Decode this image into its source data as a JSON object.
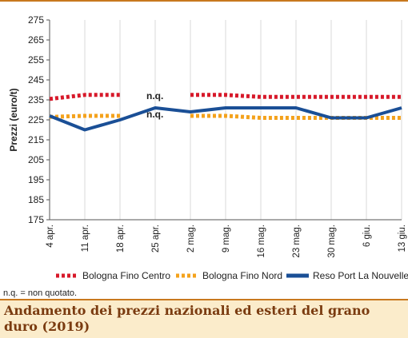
{
  "chart_data": {
    "type": "line",
    "title": "Andamento dei prezzi nazionali ed esteri del grano duro (2019)",
    "ylabel": "Prezzi (euro/t)",
    "xlabel": "",
    "ylim": [
      175,
      275
    ],
    "yticks": [
      175,
      185,
      195,
      205,
      215,
      225,
      235,
      245,
      255,
      265,
      275
    ],
    "categories": [
      "4 apr.",
      "11 apr.",
      "18 apr.",
      "25 apr.",
      "2 mag.",
      "9 mag.",
      "16 mag.",
      "23 mag.",
      "30 mag.",
      "6 giu.",
      "13 giu."
    ],
    "grid": "vertical",
    "legend_position": "bottom",
    "series": [
      {
        "name": "Bologna Fino Centro",
        "color": "#d7192a",
        "style": "dotted",
        "values": [
          235.5,
          237.5,
          237.5,
          null,
          237.5,
          237.5,
          236.5,
          236.5,
          236.5,
          236.5,
          236.5
        ]
      },
      {
        "name": "Bologna Fino Nord",
        "color": "#f4a21c",
        "style": "dotted",
        "values": [
          226.5,
          227,
          227,
          null,
          227,
          227,
          226,
          226,
          226,
          226,
          226
        ]
      },
      {
        "name": "Reso Port La Nouvelle",
        "color": "#1a4f96",
        "style": "solid",
        "values": [
          227,
          220,
          225,
          231,
          229,
          231,
          231,
          231,
          226,
          226,
          231
        ]
      }
    ],
    "annotations": [
      "n.q.",
      "n.q."
    ]
  },
  "footnote": "n.q. = non quotato."
}
